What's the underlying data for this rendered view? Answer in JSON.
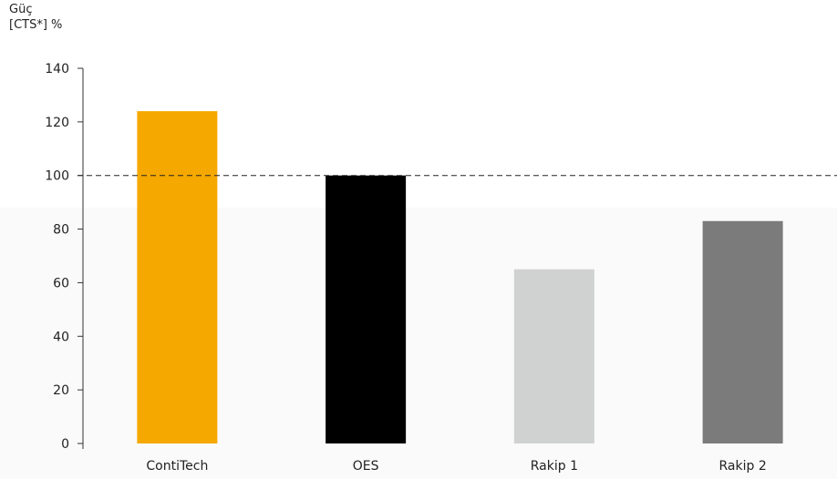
{
  "chart_data": {
    "type": "bar",
    "ylabel_line1": "Güç",
    "ylabel_line2": "[CTS*] %",
    "categories": [
      "ContiTech",
      "OES",
      "Rakip 1",
      "Rakip 2"
    ],
    "values": [
      124,
      100,
      65,
      83
    ],
    "colors": [
      "#f5a800",
      "#000000",
      "#d0d2d1",
      "#7b7b7b"
    ],
    "ylim": [
      0,
      140
    ],
    "yticks": [
      0,
      20,
      40,
      60,
      80,
      100,
      120,
      140
    ],
    "reference_line": 100,
    "grid": false
  }
}
